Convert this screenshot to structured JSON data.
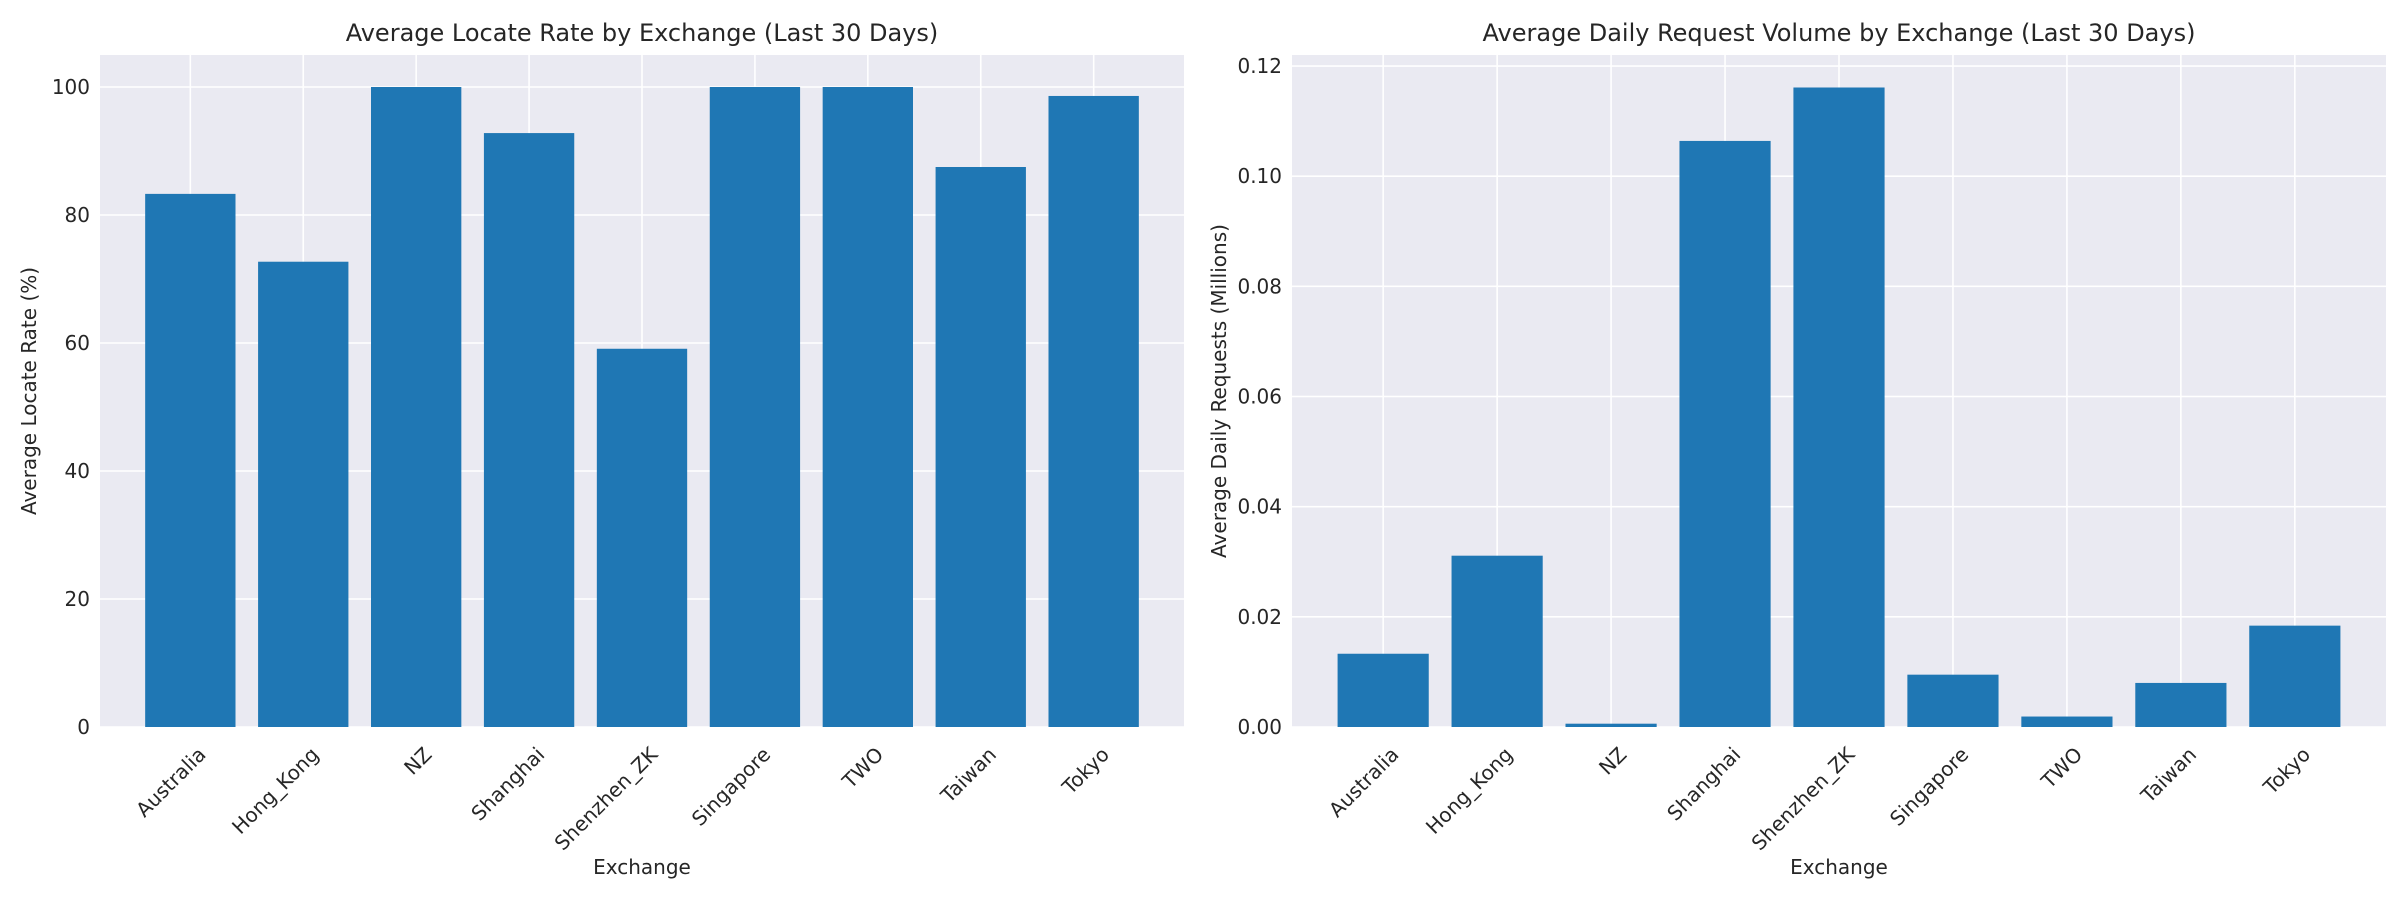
{
  "chart_data": [
    {
      "type": "bar",
      "title": "Average Locate Rate by Exchange (Last 30 Days)",
      "xlabel": "Exchange",
      "ylabel": "Average Locate Rate (%)",
      "categories": [
        "Australia",
        "Hong_Kong",
        "NZ",
        "Shanghai",
        "Shenzhen_ZK",
        "Singapore",
        "TWO",
        "Taiwan",
        "Tokyo"
      ],
      "values": [
        83.3,
        72.7,
        100.0,
        92.8,
        59.1,
        100.0,
        100.0,
        87.5,
        98.6
      ],
      "ylim": [
        0,
        105
      ],
      "yticks": [
        "0",
        "20",
        "40",
        "60",
        "80",
        "100"
      ],
      "ytick_values": [
        0,
        20,
        40,
        60,
        80,
        100
      ],
      "grid": true,
      "color": "#1f77b4",
      "background": "#eaeaf2"
    },
    {
      "type": "bar",
      "title": "Average Daily Request Volume by Exchange (Last 30 Days)",
      "xlabel": "Exchange",
      "ylabel": "Average Daily Requests (Millions)",
      "categories": [
        "Australia",
        "Hong_Kong",
        "NZ",
        "Shanghai",
        "Shenzhen_ZK",
        "Singapore",
        "TWO",
        "Taiwan",
        "Tokyo"
      ],
      "values": [
        0.0133,
        0.0311,
        0.0006,
        0.1064,
        0.1161,
        0.0095,
        0.0019,
        0.008,
        0.0184
      ],
      "ylim": [
        0,
        0.122
      ],
      "yticks": [
        "0.00",
        "0.02",
        "0.04",
        "0.06",
        "0.08",
        "0.10",
        "0.12"
      ],
      "ytick_values": [
        0,
        0.02,
        0.04,
        0.06,
        0.08,
        0.1,
        0.12
      ],
      "grid": true,
      "color": "#1f77b4",
      "background": "#eaeaf2"
    }
  ]
}
